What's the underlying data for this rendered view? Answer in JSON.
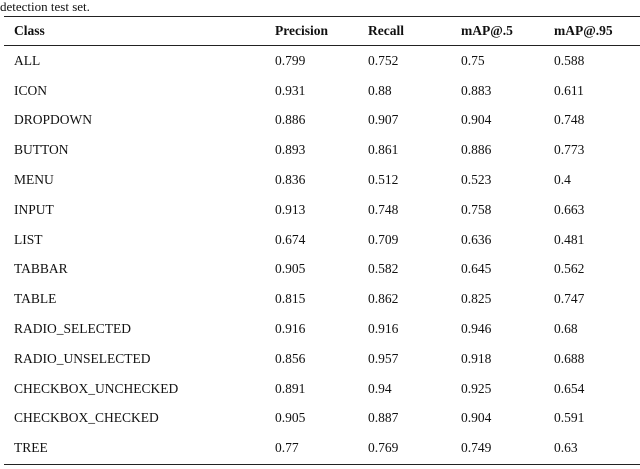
{
  "caption": "detection test set.",
  "table": {
    "headers": [
      "Class",
      "Precision",
      "Recall",
      "mAP@.5",
      "mAP@.95"
    ],
    "rows": [
      [
        "ALL",
        "0.799",
        "0.752",
        "0.75",
        "0.588"
      ],
      [
        "ICON",
        "0.931",
        "0.88",
        "0.883",
        "0.611"
      ],
      [
        "DROPDOWN",
        "0.886",
        "0.907",
        "0.904",
        "0.748"
      ],
      [
        "BUTTON",
        "0.893",
        "0.861",
        "0.886",
        "0.773"
      ],
      [
        "MENU",
        "0.836",
        "0.512",
        "0.523",
        "0.4"
      ],
      [
        "INPUT",
        "0.913",
        "0.748",
        "0.758",
        "0.663"
      ],
      [
        "LIST",
        "0.674",
        "0.709",
        "0.636",
        "0.481"
      ],
      [
        "TABBAR",
        "0.905",
        "0.582",
        "0.645",
        "0.562"
      ],
      [
        "TABLE",
        "0.815",
        "0.862",
        "0.825",
        "0.747"
      ],
      [
        "RADIO_SELECTED",
        "0.916",
        "0.916",
        "0.946",
        "0.68"
      ],
      [
        "RADIO_UNSELECTED",
        "0.856",
        "0.957",
        "0.918",
        "0.688"
      ],
      [
        "CHECKBOX_UNCHECKED",
        "0.891",
        "0.94",
        "0.925",
        "0.654"
      ],
      [
        "CHECKBOX_CHECKED",
        "0.905",
        "0.887",
        "0.904",
        "0.591"
      ],
      [
        "TREE",
        "0.77",
        "0.769",
        "0.749",
        "0.63"
      ]
    ]
  }
}
